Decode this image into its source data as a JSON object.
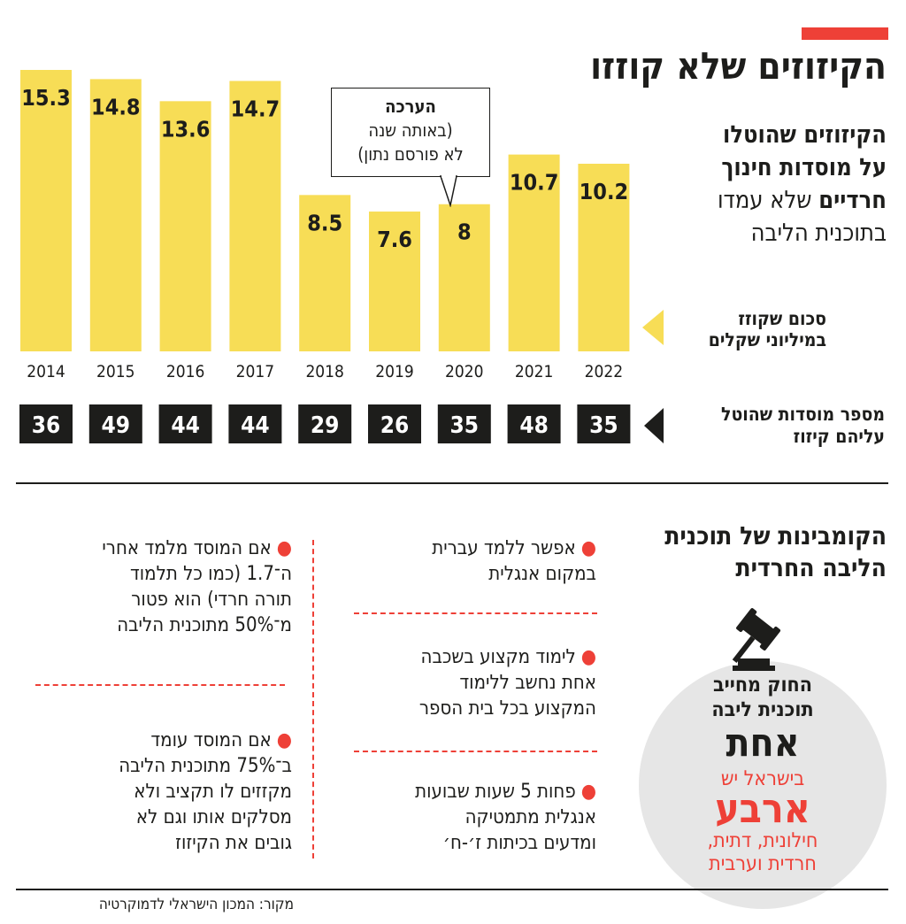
{
  "header": {
    "title": "הקיזוזים שלא קוזזו",
    "subtitle_bold": "הקיזוזים שהוטלו על מוסדות חינוך חרדיים",
    "subtitle_line1": "הקיזוזים שהוטלו",
    "subtitle_line2": "על מוסדות חינוך",
    "subtitle_line3_bold": "חרדיים",
    "subtitle_line3_light": "שלא עמדו",
    "subtitle_line4": "בתוכנית הליבה"
  },
  "legend": {
    "amount_line1": "סכום שקוזז",
    "amount_line2": "במיליוני שקלים",
    "count_line1": "מספר מוסדות שהוטל",
    "count_line2": "עליהם קיזוז"
  },
  "callout": {
    "title": "הערכה",
    "line1": "(באותה שנה",
    "line2": "לא פורסם נתון)"
  },
  "chart_data": {
    "type": "bar",
    "categories": [
      "2014",
      "2015",
      "2016",
      "2017",
      "2018",
      "2019",
      "2020",
      "2021",
      "2022"
    ],
    "series": [
      {
        "name": "סכום שקוזז במיליוני שקלים",
        "values": [
          15.3,
          14.8,
          13.6,
          14.7,
          8.5,
          7.6,
          8,
          10.7,
          10.2
        ]
      },
      {
        "name": "מספר מוסדות שהוטל עליהם קיזוז",
        "values": [
          36,
          49,
          44,
          44,
          29,
          26,
          35,
          48,
          35
        ]
      }
    ],
    "value_labels": [
      "15.3",
      "14.8",
      "13.6",
      "14.7",
      "8.5",
      "7.6",
      "8",
      "10.7",
      "10.2"
    ],
    "count_labels": [
      "36",
      "49",
      "44",
      "44",
      "29",
      "26",
      "35",
      "48",
      "35"
    ],
    "colors": {
      "bar": "#f7dd56",
      "count_box": "#1d1d1b",
      "accent": "#ee4037"
    }
  },
  "combinations": {
    "title_line1": "הקומבינות של תוכנית",
    "title_line2": "הליבה החרדית",
    "items_right": [
      {
        "lines": [
          "אפשר ללמד עברית",
          "במקום אנגלית"
        ]
      },
      {
        "lines": [
          "לימוד מקצוע בשכבה",
          "אחת נחשב ללימוד",
          "המקצוע בכל בית הספר"
        ]
      },
      {
        "lines": [
          "פחות 5 שעות שבועות",
          "אנגלית מתמטיקה",
          "ומדעים בכיתות ז׳-ח׳"
        ]
      }
    ],
    "items_left": [
      {
        "lines": [
          "אם המוסד מלמד אחרי",
          "ה־1.7 (כמו כל תלמוד",
          "תורה חרדי) הוא פטור",
          "מ־50% מתוכנית הליבה"
        ]
      },
      {
        "lines": [
          "אם המוסד עומד",
          "ב־75% מתוכנית הליבה",
          "מקזזים לו תקציב ולא",
          "מסלקים אותו וגם לא",
          "גובים את הקיזוז"
        ]
      }
    ]
  },
  "law_circle": {
    "line1": "החוק מחייב",
    "line2": "תוכנית ליבה",
    "big_black": "אחת",
    "red_line1": "בישראל יש",
    "big_red": "ארבע",
    "red_line2": "חילונית, דתית,",
    "red_line3": "חרדית וערבית",
    "icon": "gavel-icon"
  },
  "footer": {
    "source": "מקור: המכון הישראלי לדמוקרטיה"
  }
}
